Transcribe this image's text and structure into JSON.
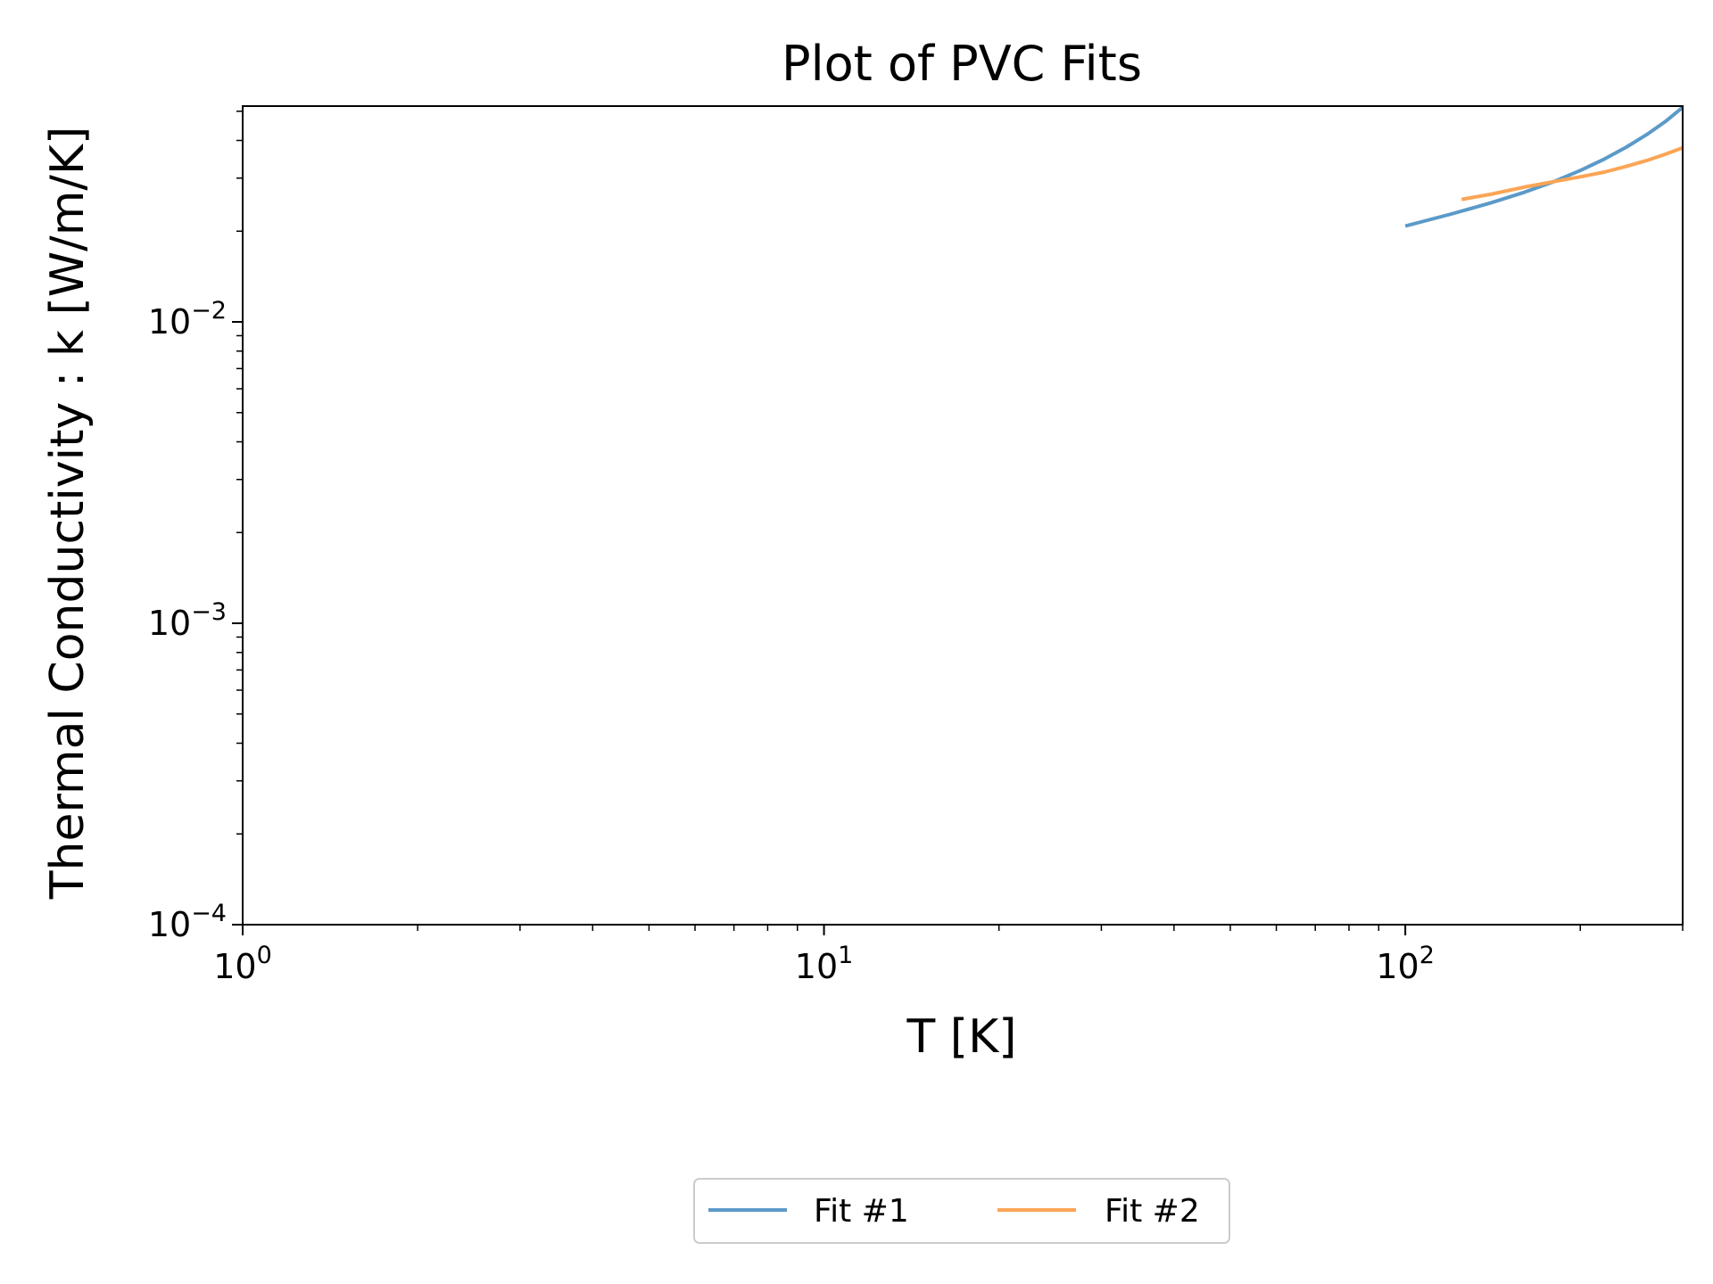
{
  "chart_data": {
    "type": "line",
    "title": "Plot of PVC Fits",
    "xlabel": "T [K]",
    "ylabel": "Thermal Conductivity : k [W/m/K]",
    "xscale": "log",
    "yscale": "log",
    "xlim": [
      1,
      300
    ],
    "ylim": [
      0.0001,
      0.052
    ],
    "grid": false,
    "legend_position": "bottom-center, below plot",
    "x_ticks": [
      {
        "value": 1,
        "base": "10",
        "exp": "0"
      },
      {
        "value": 10,
        "base": "10",
        "exp": "1"
      },
      {
        "value": 100,
        "base": "10",
        "exp": "2"
      }
    ],
    "y_ticks": [
      {
        "value": 0.0001,
        "base": "10",
        "exp": "−4"
      },
      {
        "value": 0.001,
        "base": "10",
        "exp": "−3"
      },
      {
        "value": 0.01,
        "base": "10",
        "exp": "−2"
      }
    ],
    "series": [
      {
        "name": "Fit #1",
        "color": "#5b9ac8",
        "x": [
          100,
          120,
          140,
          160,
          180,
          200,
          220,
          240,
          260,
          280,
          300
        ],
        "y": [
          0.0208,
          0.0228,
          0.0248,
          0.0269,
          0.0292,
          0.0318,
          0.0347,
          0.038,
          0.0418,
          0.0462,
          0.0515
        ]
      },
      {
        "name": "Fit #2",
        "color": "#fba555",
        "x": [
          125,
          140,
          160,
          180,
          200,
          220,
          240,
          260,
          280,
          300
        ],
        "y": [
          0.0255,
          0.0265,
          0.028,
          0.0292,
          0.0303,
          0.0314,
          0.0328,
          0.0343,
          0.036,
          0.0378
        ]
      }
    ]
  }
}
